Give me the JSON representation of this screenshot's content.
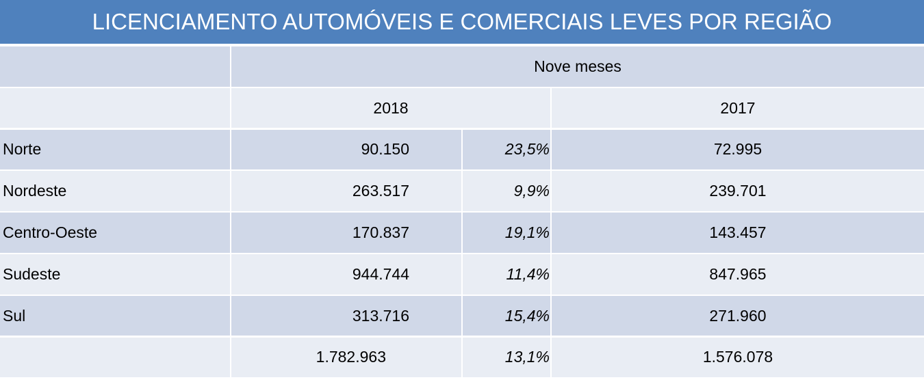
{
  "title": "LICENCIAMENTO AUTOMÓVEIS E COMERCIAIS LEVES POR REGIÃO",
  "table": {
    "group_header": "Nove meses",
    "years": [
      "2018",
      "2017"
    ],
    "rows": [
      [
        "Norte",
        "90.150",
        "23,5%",
        "72.995"
      ],
      [
        "Nordeste",
        "263.517",
        "9,9%",
        "239.701"
      ],
      [
        "Centro-Oeste",
        "170.837",
        "19,1%",
        "143.457"
      ],
      [
        "Sudeste",
        "944.744",
        "11,4%",
        "847.965"
      ],
      [
        "Sul",
        "313.716",
        "15,4%",
        "271.960"
      ]
    ],
    "total": [
      "1.782.963",
      "13,1%",
      "1.576.078"
    ]
  }
}
